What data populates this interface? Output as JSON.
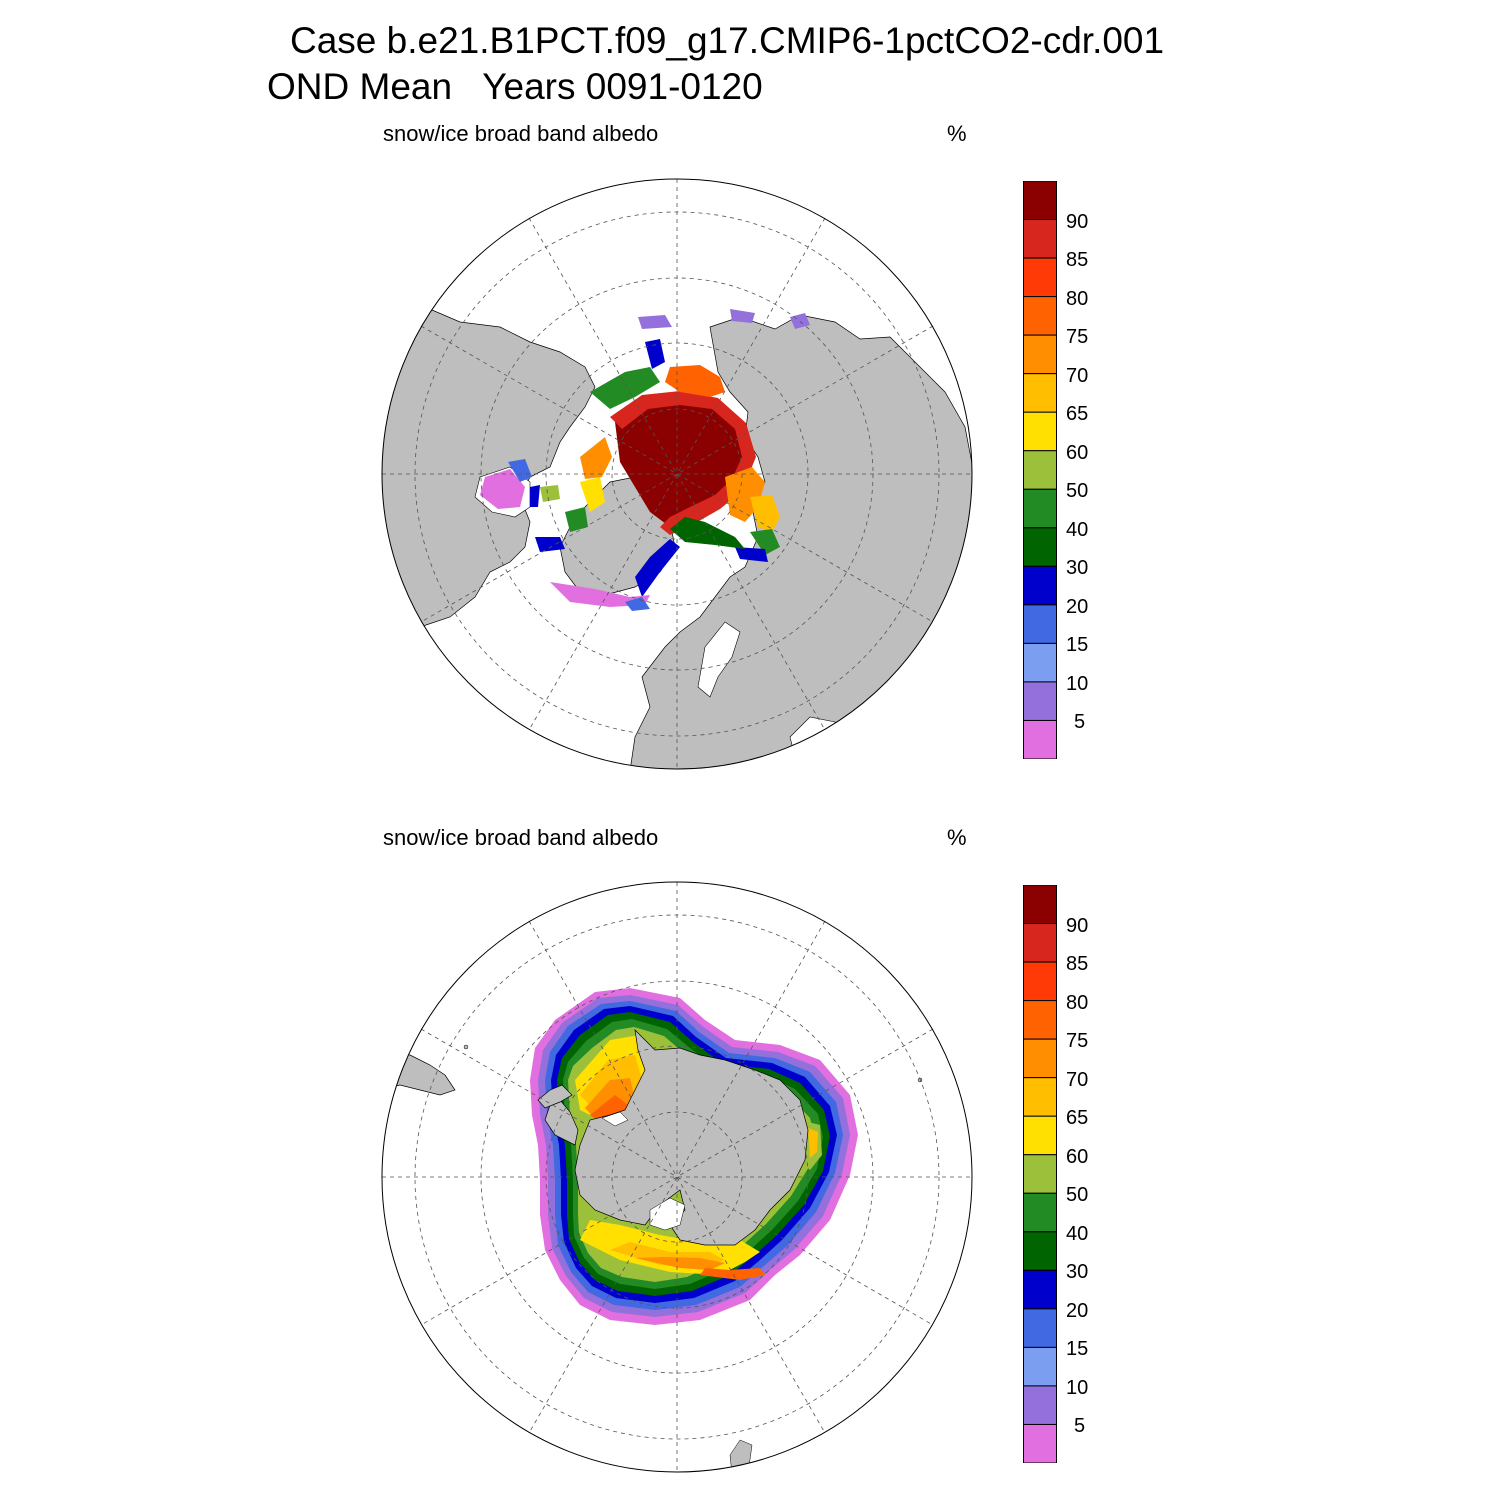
{
  "header": {
    "line1": "Case b.e21.B1PCT.f09_g17.CMIP6-1pctCO2-cdr.001",
    "line2": "OND Mean   Years 0091-0120"
  },
  "panels": [
    {
      "name": "north",
      "variable": "snow/ice broad band albedo",
      "units": "%"
    },
    {
      "name": "south",
      "variable": "snow/ice broad band albedo",
      "units": "%"
    }
  ],
  "colorbar": {
    "labels": [
      "90",
      "85",
      "80",
      "75",
      "70",
      "65",
      "60",
      "50",
      "40",
      "30",
      "20",
      "15",
      "10",
      "5"
    ],
    "colors": [
      "#8b0000",
      "#d7261d",
      "#ff3a06",
      "#ff6200",
      "#ff8f00",
      "#ffbe00",
      "#ffe000",
      "#9dc03b",
      "#238b23",
      "#006400",
      "#0000cd",
      "#4169e1",
      "#7b9ef0",
      "#9370db",
      "#e26fe0"
    ]
  },
  "map_colors": {
    "land": "#bebebe",
    "ocean": "#ffffff",
    "grid": "#555555"
  }
}
